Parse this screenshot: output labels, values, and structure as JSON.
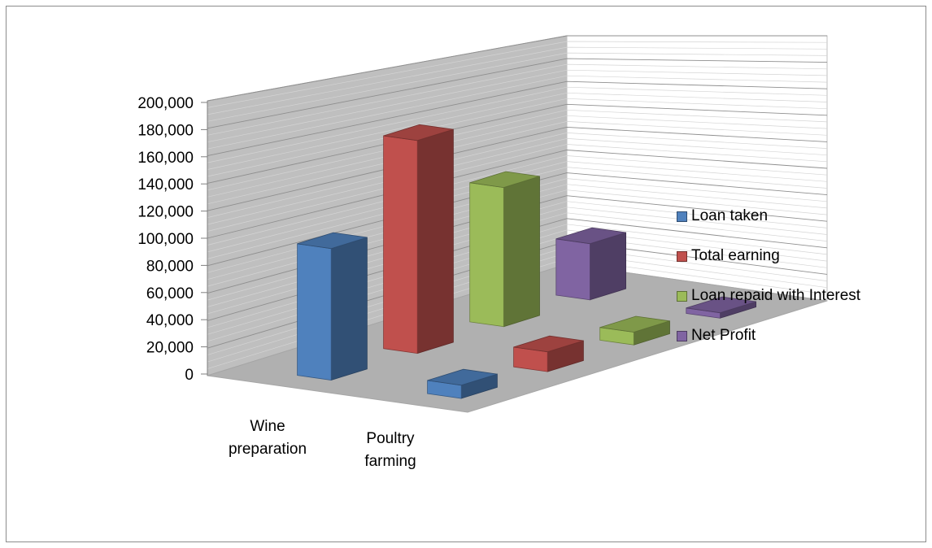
{
  "chart_data": {
    "type": "bar",
    "variant": "3d-column",
    "categories": [
      "Wine preparation",
      "Poultry farming"
    ],
    "category_lines": [
      [
        "Wine",
        "preparation"
      ],
      [
        "Poultry",
        "farming"
      ]
    ],
    "series": [
      {
        "name": "Loan taken",
        "values": [
          100000,
          10000
        ],
        "color": "#4f81bd"
      },
      {
        "name": "Total earning",
        "values": [
          172000,
          16000
        ],
        "color": "#c0504d"
      },
      {
        "name": "Loan repaid with Interest",
        "values": [
          120000,
          11000
        ],
        "color": "#9bbb59"
      },
      {
        "name": "Net Profit",
        "values": [
          52000,
          5000
        ],
        "color": "#8064a2"
      }
    ],
    "y_ticks": [
      "200,000",
      "180,000",
      "160,000",
      "140,000",
      "120,000",
      "100,000",
      "80,000",
      "60,000",
      "40,000",
      "20,000",
      "0"
    ],
    "ylim": [
      0,
      200000
    ],
    "grid": true,
    "legend_position": "right"
  }
}
